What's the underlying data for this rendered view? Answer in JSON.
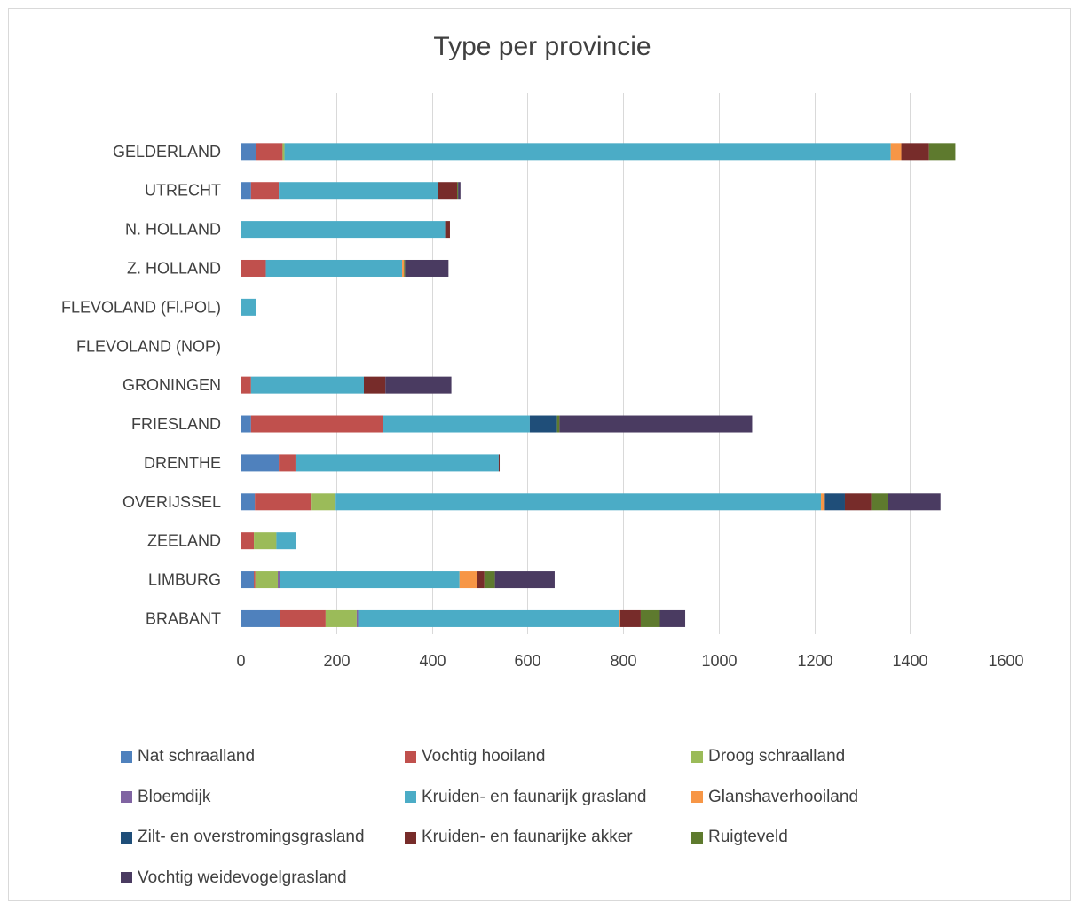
{
  "chart_data": {
    "type": "bar",
    "orientation": "horizontal",
    "stacked": true,
    "title": "Type per provincie",
    "categories": [
      "GELDERLAND",
      "UTRECHT",
      "N. HOLLAND",
      "Z. HOLLAND",
      "FLEVOLAND (Fl.POL)",
      "FLEVOLAND (NOP)",
      "GRONINGEN",
      "FRIESLAND",
      "DRENTHE",
      "OVERIJSSEL",
      "ZEELAND",
      "LIMBURG",
      "BRABANT"
    ],
    "xlim": [
      0,
      1600
    ],
    "xticks": [
      0,
      200,
      400,
      600,
      800,
      1000,
      1200,
      1400,
      1600
    ],
    "xtick_labels": [
      "0",
      "200",
      "400",
      "600",
      "800",
      "1000",
      "1200",
      "1400",
      "1600"
    ],
    "grid": true,
    "legend_position": "bottom",
    "series": [
      {
        "name": "Nat schraalland",
        "color": "#4f81bd",
        "values": [
          33,
          22,
          0,
          0,
          0,
          0,
          0,
          22,
          80,
          30,
          0,
          28,
          83
        ]
      },
      {
        "name": "Vochtig hooiland",
        "color": "#c0504d",
        "values": [
          55,
          58,
          0,
          53,
          0,
          0,
          22,
          275,
          35,
          117,
          28,
          3,
          95
        ]
      },
      {
        "name": "Droog schraalland",
        "color": "#9bbb59",
        "values": [
          4,
          0,
          0,
          0,
          0,
          0,
          0,
          0,
          0,
          52,
          47,
          47,
          65
        ]
      },
      {
        "name": "Bloemdijk",
        "color": "#8064a2",
        "values": [
          0,
          0,
          0,
          0,
          0,
          0,
          0,
          0,
          0,
          0,
          0,
          5,
          3
        ]
      },
      {
        "name": "Kruiden- en faunarijk grasland",
        "color": "#4bacc6",
        "values": [
          1268,
          333,
          428,
          285,
          33,
          0,
          236,
          308,
          425,
          1015,
          40,
          375,
          545
        ]
      },
      {
        "name": "Glanshaverhooiland",
        "color": "#f79646",
        "values": [
          22,
          0,
          0,
          4,
          0,
          0,
          0,
          0,
          0,
          8,
          0,
          37,
          3
        ]
      },
      {
        "name": "Zilt- en overstromingsgrasland",
        "color": "#1f4e79",
        "values": [
          0,
          0,
          0,
          0,
          0,
          0,
          0,
          57,
          0,
          42,
          1,
          0,
          0
        ]
      },
      {
        "name": "Kruiden- en faunarijke akker",
        "color": "#772c2a",
        "values": [
          58,
          40,
          10,
          0,
          0,
          0,
          45,
          0,
          2,
          55,
          0,
          15,
          43
        ]
      },
      {
        "name": "Ruigteveld",
        "color": "#5e7a2e",
        "values": [
          55,
          2,
          0,
          2,
          0,
          0,
          0,
          5,
          0,
          35,
          0,
          22,
          40
        ]
      },
      {
        "name": "Vochtig weidevogelgrasland",
        "color": "#4a3b61",
        "values": [
          0,
          5,
          0,
          91,
          0,
          0,
          138,
          403,
          0,
          110,
          0,
          125,
          53
        ]
      }
    ]
  }
}
